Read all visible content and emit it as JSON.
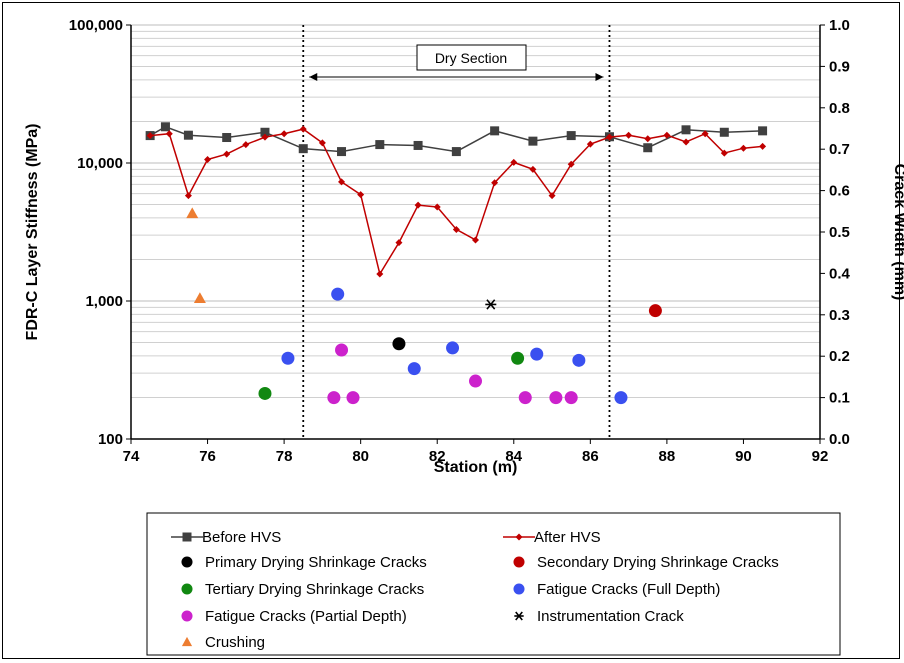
{
  "chart_data": {
    "type": "scatter",
    "xlabel": "Station (m)",
    "ylabel": "FDR-C Layer Stiffness (MPa)",
    "y2label": "Crack Width (mm)",
    "xlim": [
      74,
      92
    ],
    "x_ticks": [
      "74",
      "76",
      "78",
      "80",
      "82",
      "84",
      "86",
      "88",
      "90",
      "92"
    ],
    "ylim": [
      100,
      100000
    ],
    "y_scale": "log",
    "y_ticks": [
      "100",
      "1,000",
      "10,000",
      "100,000"
    ],
    "y2lim": [
      0,
      1.0
    ],
    "y2_ticks": [
      "0.0",
      "0.1",
      "0.2",
      "0.3",
      "0.4",
      "0.5",
      "0.6",
      "0.7",
      "0.8",
      "0.9",
      "1.0"
    ],
    "grid": "horizontal log minor gridlines",
    "annotation": {
      "label": "Dry Section",
      "x_start": 78.5,
      "x_end": 86.5,
      "style": "dotted vertical boundary lines with double-headed arrow"
    },
    "legend_position": "bottom",
    "colors": {
      "before": "#404040",
      "after": "#c00000",
      "primary": "#000000",
      "secondary": "#c00000",
      "tertiary": "#118811",
      "fatigue_full": "#3a50f0",
      "fatigue_partial": "#cc22cc",
      "instrumentation": "#000000",
      "crushing": "#ed7d31"
    },
    "series": [
      {
        "name": "Before HVS",
        "axis": "left",
        "style": "line-square",
        "x": [
          74.5,
          74.9,
          75.5,
          76.5,
          77.5,
          78.5,
          79.5,
          80.5,
          81.5,
          82.5,
          83.5,
          84.5,
          85.5,
          86.5,
          87.5,
          88.5,
          89.5,
          90.5
        ],
        "y": [
          15800,
          18300,
          15900,
          15300,
          16700,
          12700,
          12100,
          13600,
          13400,
          12100,
          17100,
          14400,
          15800,
          15500,
          12900,
          17400,
          16700,
          17100
        ]
      },
      {
        "name": "After HVS",
        "axis": "left",
        "style": "line-diamond",
        "x": [
          74.5,
          75.0,
          75.5,
          76.0,
          76.5,
          77.0,
          77.5,
          78.0,
          78.5,
          79.0,
          79.5,
          80.0,
          80.5,
          81.0,
          81.5,
          82.0,
          82.5,
          83.0,
          83.5,
          84.0,
          84.5,
          85.0,
          85.5,
          86.0,
          86.5,
          87.0,
          87.5,
          88.0,
          88.5,
          89.0,
          89.5,
          90.0,
          90.5
        ],
        "y": [
          15800,
          16300,
          5800,
          10600,
          11600,
          13600,
          15400,
          16300,
          17600,
          14000,
          7300,
          5900,
          1570,
          2650,
          4950,
          4800,
          3300,
          2770,
          7200,
          10100,
          9000,
          5800,
          9800,
          13700,
          15400,
          15900,
          15000,
          15900,
          14200,
          16300,
          11800,
          12800,
          13200
        ]
      },
      {
        "name": "Primary Drying Shrinkage Cracks",
        "axis": "right",
        "style": "circle",
        "x": [
          81.0
        ],
        "y": [
          0.23
        ]
      },
      {
        "name": "Secondary Drying Shrinkage Cracks",
        "axis": "right",
        "style": "circle",
        "x": [
          87.7
        ],
        "y": [
          0.31
        ]
      },
      {
        "name": "Tertiary Drying Shrinkage Cracks",
        "axis": "right",
        "style": "circle",
        "x": [
          77.5,
          84.1
        ],
        "y": [
          0.11,
          0.195
        ]
      },
      {
        "name": "Fatigue Cracks (Full Depth)",
        "axis": "right",
        "style": "circle",
        "x": [
          79.4,
          78.1,
          82.4,
          84.6,
          81.4,
          85.7,
          86.8
        ],
        "y": [
          0.35,
          0.195,
          0.22,
          0.205,
          0.17,
          0.19,
          0.1
        ]
      },
      {
        "name": "Fatigue Cracks (Partial Depth)",
        "axis": "right",
        "style": "circle",
        "x": [
          79.5,
          83.0,
          79.3,
          79.8,
          84.3,
          85.1,
          85.5
        ],
        "y": [
          0.215,
          0.14,
          0.1,
          0.1,
          0.1,
          0.1,
          0.1
        ]
      },
      {
        "name": "Instrumentation Crack",
        "axis": "right",
        "style": "asterisk",
        "x": [
          83.4
        ],
        "y": [
          0.325
        ]
      },
      {
        "name": "Crushing",
        "axis": "right",
        "style": "triangle",
        "x": [
          75.6,
          75.8
        ],
        "y": [
          0.545,
          0.34
        ]
      }
    ]
  },
  "legend_items": [
    {
      "label": "Before HVS",
      "series": 0
    },
    {
      "label": "After HVS",
      "series": 1
    },
    {
      "label": "Primary Drying Shrinkage Cracks",
      "series": 2
    },
    {
      "label": "Secondary Drying Shrinkage Cracks",
      "series": 3
    },
    {
      "label": "Tertiary Drying Shrinkage Cracks",
      "series": 4
    },
    {
      "label": "Fatigue Cracks (Full Depth)",
      "series": 5
    },
    {
      "label": "Fatigue Cracks (Partial Depth)",
      "series": 6
    },
    {
      "label": "Instrumentation Crack",
      "series": 7
    },
    {
      "label": "Crushing",
      "series": 8
    }
  ]
}
